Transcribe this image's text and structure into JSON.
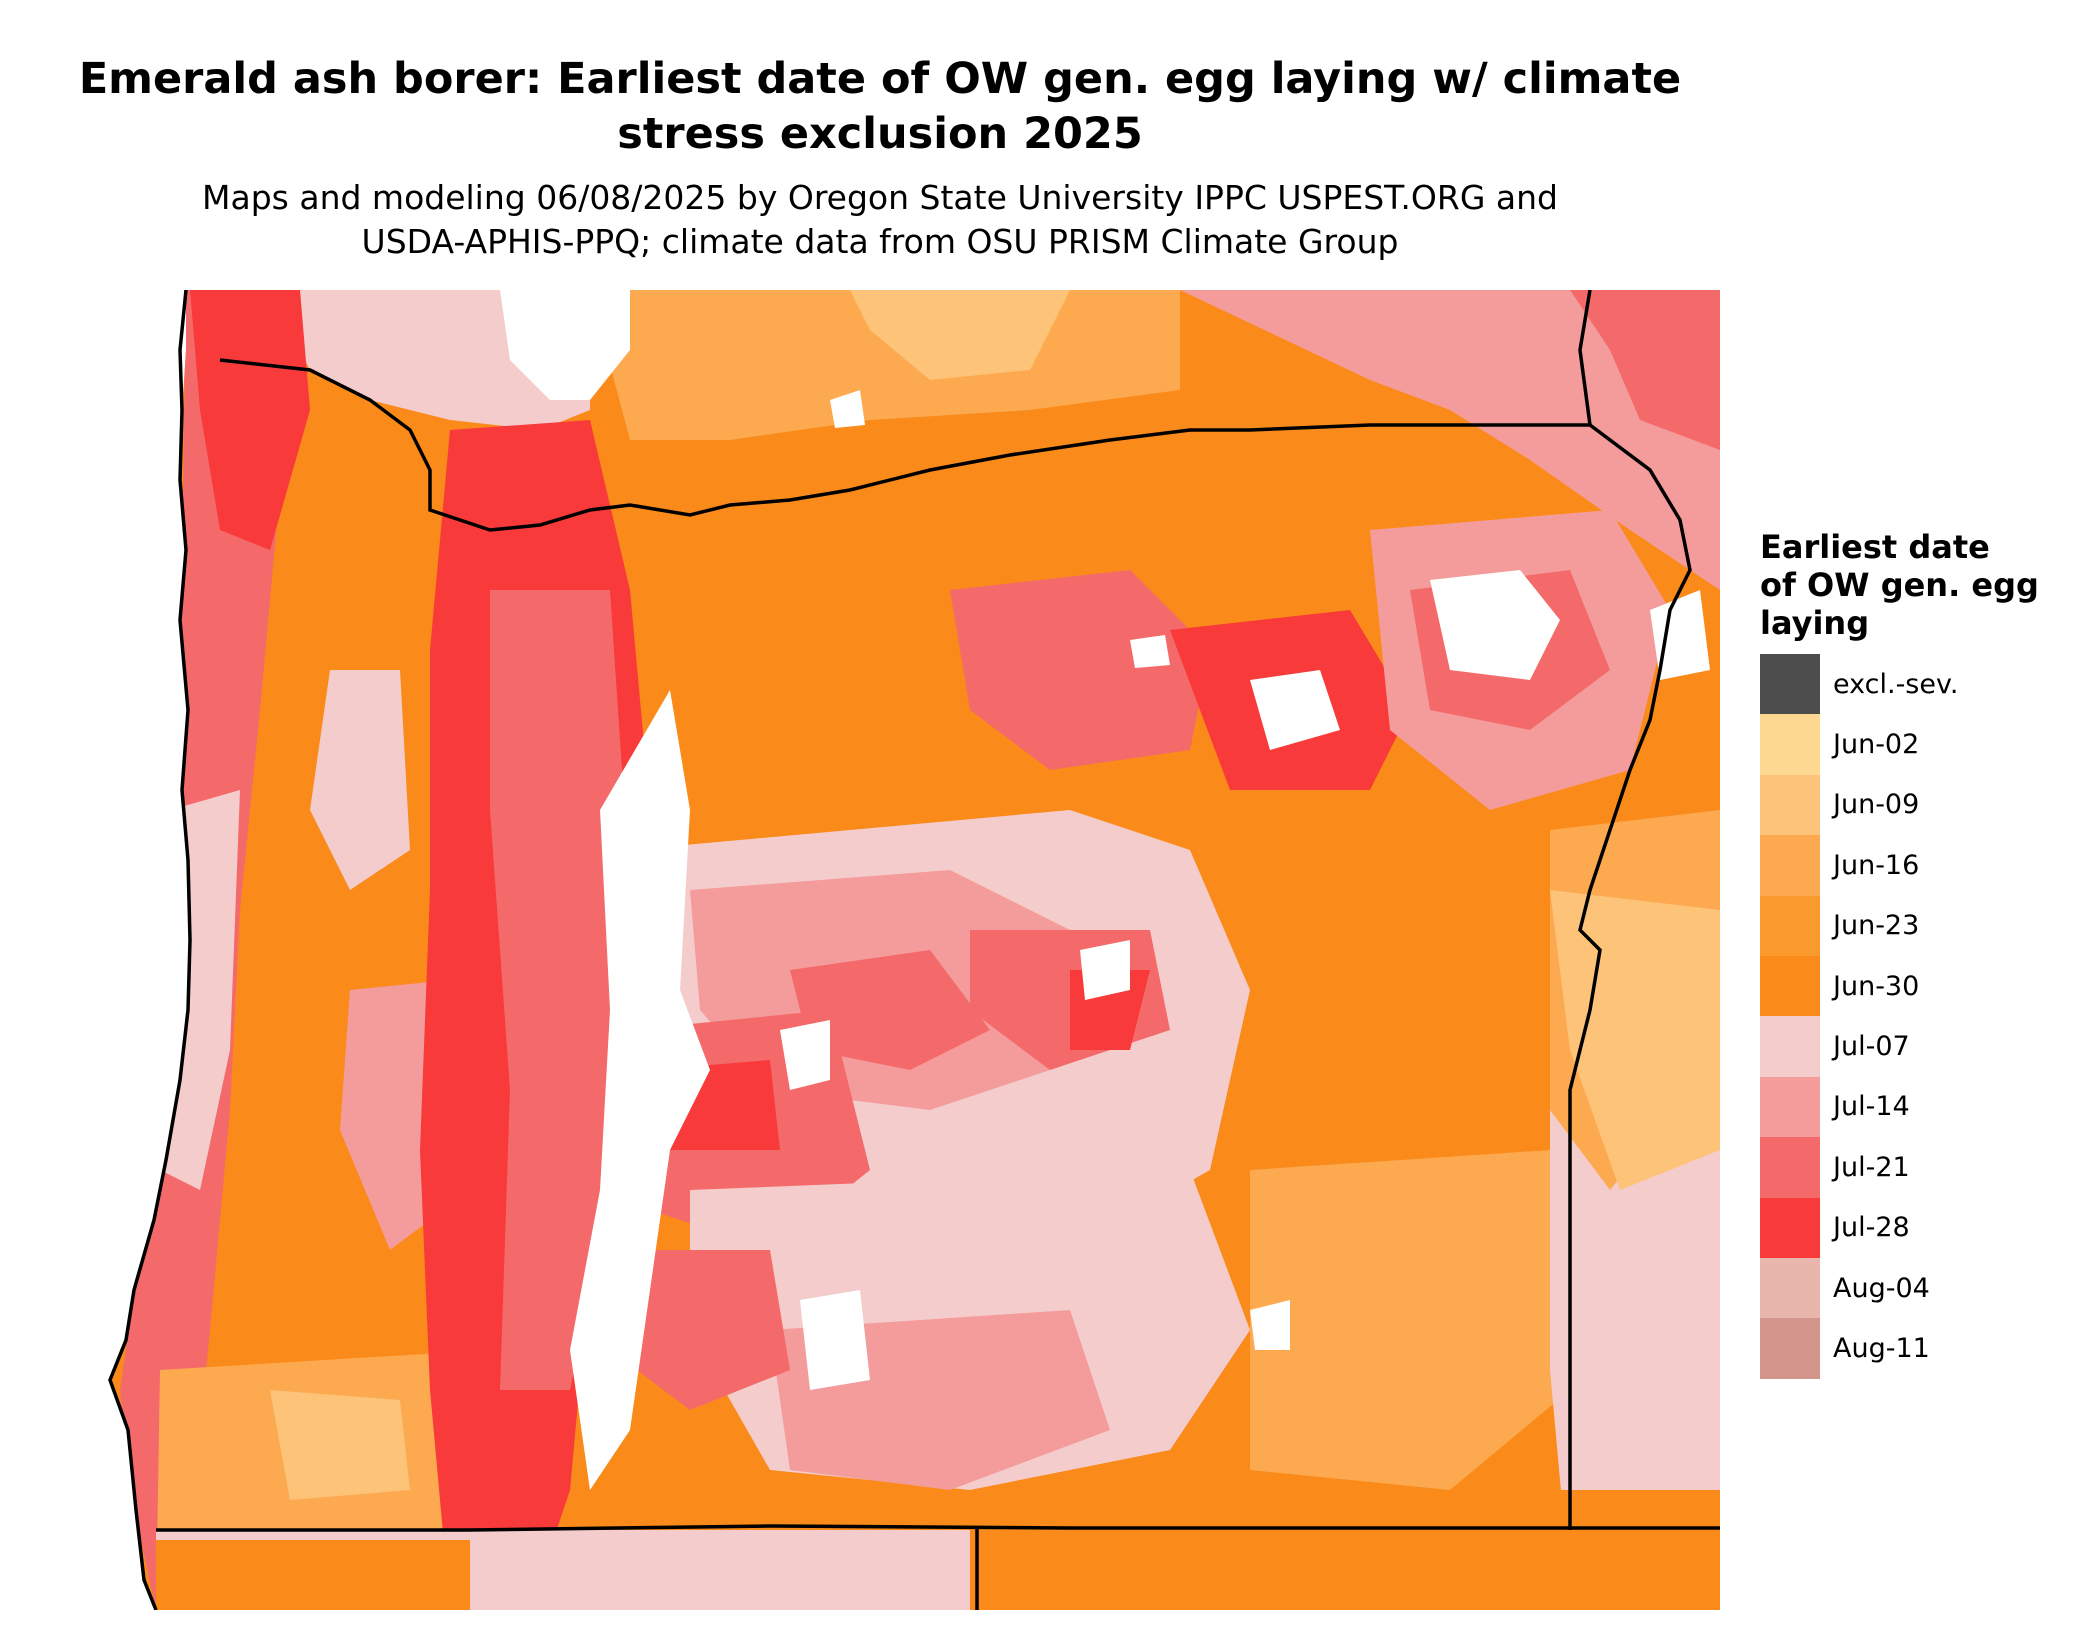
{
  "title": {
    "line1": "Emerald ash borer: Earliest date of OW gen. egg laying w/ climate",
    "line2": "stress exclusion 2025"
  },
  "subtitle": {
    "line1": "Maps and modeling 06/08/2025 by Oregon State University IPPC USPEST.ORG and",
    "line2": "USDA-APHIS-PPQ; climate data from OSU PRISM Climate Group"
  },
  "legend": {
    "title_lines": [
      "Earliest date",
      "of OW gen. egg",
      "laying"
    ],
    "items": [
      {
        "label": "excl.-sev.",
        "color": "#4d4d4d"
      },
      {
        "label": "Jun-02",
        "color": "#fdd890"
      },
      {
        "label": "Jun-09",
        "color": "#fdc378"
      },
      {
        "label": "Jun-16",
        "color": "#fca950"
      },
      {
        "label": "Jun-23",
        "color": "#fb9a2c"
      },
      {
        "label": "Jun-30",
        "color": "#fa8a19"
      },
      {
        "label": "Jul-07",
        "color": "#f4cccc"
      },
      {
        "label": "Jul-14",
        "color": "#f49c9c"
      },
      {
        "label": "Jul-21",
        "color": "#f46a6a"
      },
      {
        "label": "Jul-28",
        "color": "#f83a3a"
      },
      {
        "label": "Aug-04",
        "color": "#e8b6ac"
      },
      {
        "label": "Aug-11",
        "color": "#d4968c"
      }
    ]
  },
  "map": {
    "region": "Oregon",
    "excluded_area_color": "#ffffff",
    "boundary_color": "#000000"
  }
}
